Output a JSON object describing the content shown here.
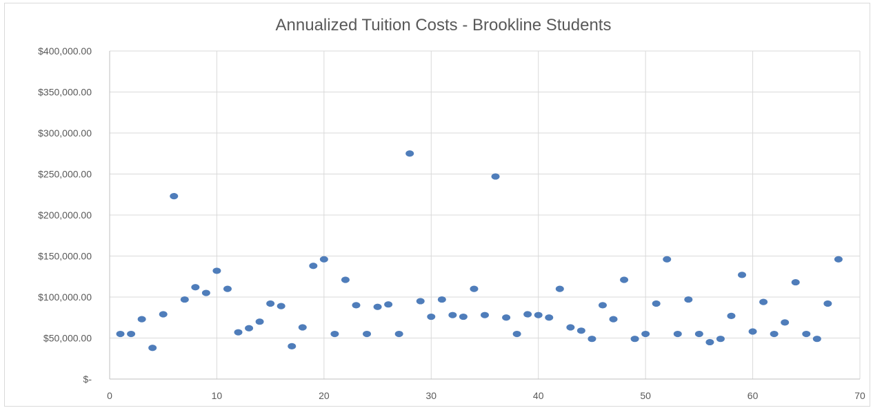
{
  "chart_data": {
    "type": "scatter",
    "title": "Annualized Tuition Costs - Brookline Students",
    "xlabel": "",
    "ylabel": "",
    "xlim": [
      0,
      70
    ],
    "ylim": [
      0,
      400000
    ],
    "x_ticks": [
      0,
      10,
      20,
      30,
      40,
      50,
      60,
      70
    ],
    "x_tick_labels": [
      "0",
      "10",
      "20",
      "30",
      "40",
      "50",
      "60",
      "70"
    ],
    "y_ticks": [
      0,
      50000,
      100000,
      150000,
      200000,
      250000,
      300000,
      350000,
      400000
    ],
    "y_tick_labels": [
      "$-",
      "$50,000.00",
      "$100,000.00",
      "$150,000.00",
      "$200,000.00",
      "$250,000.00",
      "$300,000.00",
      "$350,000.00",
      "$400,000.00"
    ],
    "grid": true,
    "legend": "none",
    "marker_color": "#4f7dba",
    "points": [
      {
        "x": 1,
        "y": 55000
      },
      {
        "x": 2,
        "y": 55000
      },
      {
        "x": 3,
        "y": 73000
      },
      {
        "x": 4,
        "y": 38000
      },
      {
        "x": 5,
        "y": 79000
      },
      {
        "x": 6,
        "y": 223000
      },
      {
        "x": 7,
        "y": 97000
      },
      {
        "x": 8,
        "y": 112000
      },
      {
        "x": 9,
        "y": 105000
      },
      {
        "x": 10,
        "y": 132000
      },
      {
        "x": 11,
        "y": 110000
      },
      {
        "x": 12,
        "y": 57000
      },
      {
        "x": 13,
        "y": 62000
      },
      {
        "x": 14,
        "y": 70000
      },
      {
        "x": 15,
        "y": 92000
      },
      {
        "x": 16,
        "y": 89000
      },
      {
        "x": 17,
        "y": 40000
      },
      {
        "x": 18,
        "y": 63000
      },
      {
        "x": 19,
        "y": 138000
      },
      {
        "x": 20,
        "y": 146000
      },
      {
        "x": 21,
        "y": 55000
      },
      {
        "x": 22,
        "y": 121000
      },
      {
        "x": 23,
        "y": 90000
      },
      {
        "x": 24,
        "y": 55000
      },
      {
        "x": 25,
        "y": 88000
      },
      {
        "x": 26,
        "y": 91000
      },
      {
        "x": 27,
        "y": 55000
      },
      {
        "x": 28,
        "y": 275000
      },
      {
        "x": 29,
        "y": 95000
      },
      {
        "x": 30,
        "y": 76000
      },
      {
        "x": 31,
        "y": 97000
      },
      {
        "x": 32,
        "y": 78000
      },
      {
        "x": 33,
        "y": 76000
      },
      {
        "x": 34,
        "y": 110000
      },
      {
        "x": 35,
        "y": 78000
      },
      {
        "x": 36,
        "y": 247000
      },
      {
        "x": 37,
        "y": 75000
      },
      {
        "x": 38,
        "y": 55000
      },
      {
        "x": 39,
        "y": 79000
      },
      {
        "x": 40,
        "y": 78000
      },
      {
        "x": 41,
        "y": 75000
      },
      {
        "x": 42,
        "y": 110000
      },
      {
        "x": 43,
        "y": 63000
      },
      {
        "x": 44,
        "y": 59000
      },
      {
        "x": 45,
        "y": 49000
      },
      {
        "x": 46,
        "y": 90000
      },
      {
        "x": 47,
        "y": 73000
      },
      {
        "x": 48,
        "y": 121000
      },
      {
        "x": 49,
        "y": 49000
      },
      {
        "x": 50,
        "y": 55000
      },
      {
        "x": 51,
        "y": 92000
      },
      {
        "x": 52,
        "y": 146000
      },
      {
        "x": 53,
        "y": 55000
      },
      {
        "x": 54,
        "y": 97000
      },
      {
        "x": 55,
        "y": 55000
      },
      {
        "x": 56,
        "y": 45000
      },
      {
        "x": 57,
        "y": 49000
      },
      {
        "x": 58,
        "y": 77000
      },
      {
        "x": 59,
        "y": 127000
      },
      {
        "x": 60,
        "y": 58000
      },
      {
        "x": 61,
        "y": 94000
      },
      {
        "x": 62,
        "y": 55000
      },
      {
        "x": 63,
        "y": 69000
      },
      {
        "x": 64,
        "y": 118000
      },
      {
        "x": 65,
        "y": 55000
      },
      {
        "x": 66,
        "y": 49000
      },
      {
        "x": 67,
        "y": 92000
      },
      {
        "x": 68,
        "y": 146000
      }
    ]
  }
}
